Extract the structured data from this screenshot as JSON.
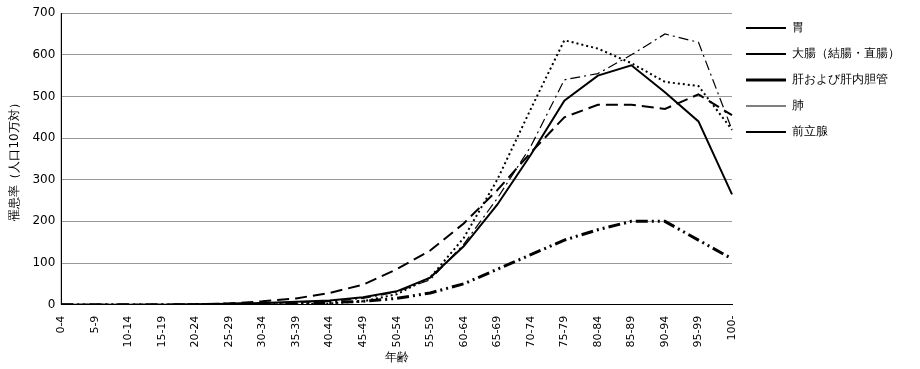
{
  "chart_data": {
    "type": "line",
    "x_label": "年齢",
    "y_label": "罹患率（人口10万対）",
    "categories": [
      "0-4",
      "5-9",
      "10-14",
      "15-19",
      "20-24",
      "25-29",
      "30-34",
      "35-39",
      "40-44",
      "45-49",
      "50-54",
      "55-59",
      "60-64",
      "65-69",
      "70-74",
      "75-79",
      "80-84",
      "85-89",
      "90-94",
      "95-99",
      "100-"
    ],
    "series": [
      {
        "name": "胃",
        "color": "#000000",
        "line_style": "solid",
        "values": [
          0,
          0,
          0,
          0,
          1,
          2,
          4,
          7,
          10,
          18,
          32,
          65,
          140,
          240,
          360,
          490,
          550,
          575,
          510,
          440,
          265
        ]
      },
      {
        "name": "大腸（結腸・直腸）",
        "color": "#000000",
        "line_style": "dashed",
        "values": [
          0,
          0,
          0,
          0,
          1,
          3,
          8,
          15,
          28,
          48,
          85,
          130,
          195,
          275,
          365,
          450,
          480,
          480,
          470,
          505,
          455
        ]
      },
      {
        "name": "肝および肝内胆管",
        "color": "#000000",
        "line_style": "dash-dot-dot",
        "values": [
          0,
          0,
          0,
          0,
          0,
          1,
          2,
          3,
          5,
          8,
          15,
          28,
          50,
          85,
          120,
          155,
          180,
          200,
          200,
          155,
          110
        ]
      },
      {
        "name": "肺",
        "color": "#000000",
        "line_style": "dash-dot",
        "values": [
          0,
          0,
          0,
          0,
          0,
          1,
          3,
          5,
          8,
          15,
          30,
          60,
          145,
          255,
          380,
          540,
          555,
          600,
          650,
          630,
          420
        ]
      },
      {
        "name": "前立腺",
        "color": "#000000",
        "line_style": "dotted",
        "values": [
          0,
          0,
          0,
          0,
          0,
          0,
          0,
          1,
          3,
          8,
          25,
          65,
          160,
          300,
          470,
          635,
          615,
          580,
          535,
          525,
          420
        ]
      }
    ],
    "ylim": [
      0,
      700
    ],
    "yticks": [
      0,
      100,
      200,
      300,
      400,
      500,
      600,
      700
    ],
    "grid": true,
    "legend": "right"
  }
}
